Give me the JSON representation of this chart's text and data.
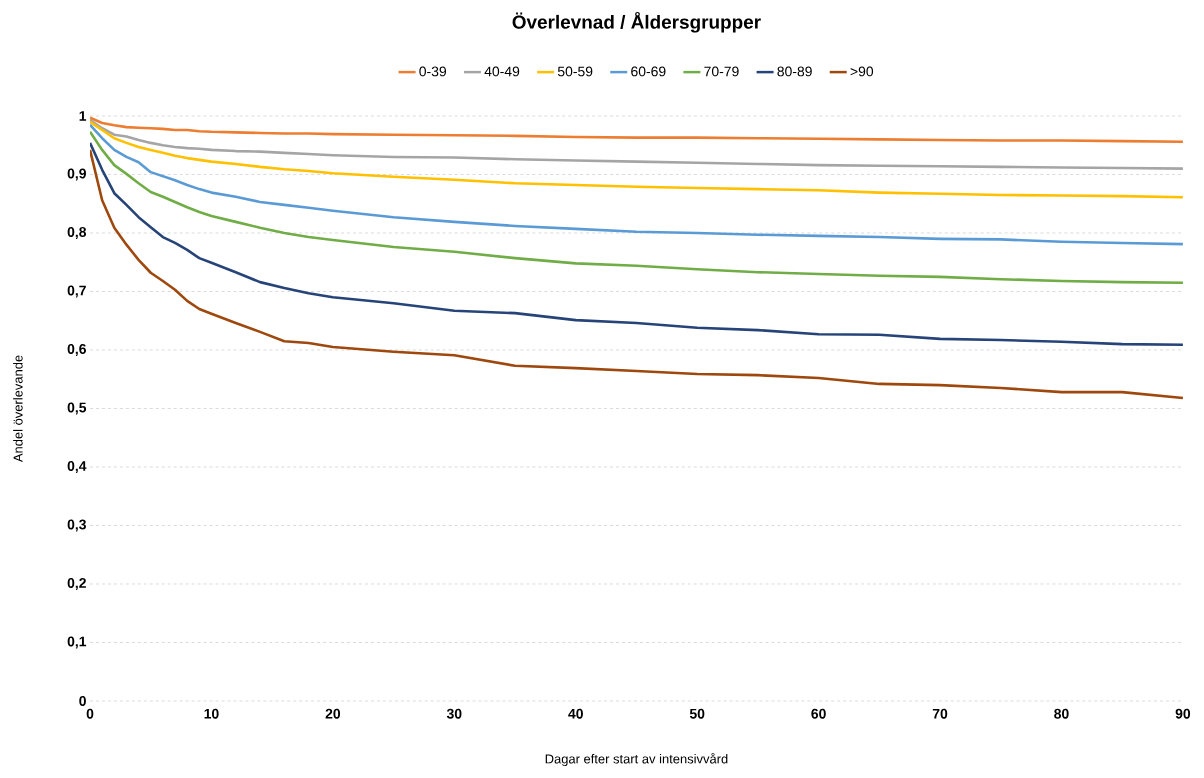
{
  "chart_data": {
    "type": "line",
    "title": "Överlevnad / Åldersgrupper",
    "xlabel": "Dagar efter start av intensivvård",
    "ylabel": "Andel överlevande",
    "x": [
      0,
      1,
      2,
      3,
      4,
      5,
      6,
      7,
      8,
      9,
      10,
      12,
      14,
      16,
      18,
      20,
      25,
      30,
      35,
      40,
      45,
      50,
      55,
      60,
      65,
      70,
      75,
      80,
      85,
      90
    ],
    "series": [
      {
        "name": "0-39",
        "color": "#ed7d31",
        "values": [
          0.997,
          0.988,
          0.984,
          0.981,
          0.98,
          0.979,
          0.978,
          0.976,
          0.976,
          0.974,
          0.973,
          0.972,
          0.971,
          0.97,
          0.97,
          0.969,
          0.968,
          0.967,
          0.966,
          0.964,
          0.963,
          0.963,
          0.962,
          0.961,
          0.96,
          0.959,
          0.958,
          0.958,
          0.957,
          0.956
        ]
      },
      {
        "name": "40-49",
        "color": "#a5a5a5",
        "values": [
          0.993,
          0.979,
          0.968,
          0.965,
          0.959,
          0.954,
          0.95,
          0.947,
          0.945,
          0.944,
          0.942,
          0.94,
          0.939,
          0.937,
          0.935,
          0.933,
          0.93,
          0.929,
          0.926,
          0.924,
          0.922,
          0.92,
          0.918,
          0.916,
          0.915,
          0.914,
          0.913,
          0.912,
          0.911,
          0.91
        ]
      },
      {
        "name": "50-59",
        "color": "#ffc000",
        "values": [
          0.99,
          0.976,
          0.962,
          0.954,
          0.947,
          0.942,
          0.937,
          0.932,
          0.928,
          0.925,
          0.922,
          0.918,
          0.913,
          0.909,
          0.906,
          0.902,
          0.896,
          0.891,
          0.885,
          0.882,
          0.879,
          0.877,
          0.875,
          0.873,
          0.869,
          0.867,
          0.865,
          0.864,
          0.863,
          0.861
        ]
      },
      {
        "name": "60-69",
        "color": "#5b9bd5",
        "values": [
          0.985,
          0.962,
          0.942,
          0.93,
          0.921,
          0.904,
          0.897,
          0.89,
          0.882,
          0.875,
          0.869,
          0.862,
          0.853,
          0.848,
          0.843,
          0.838,
          0.827,
          0.819,
          0.812,
          0.807,
          0.802,
          0.8,
          0.797,
          0.795,
          0.793,
          0.79,
          0.789,
          0.785,
          0.783,
          0.781
        ]
      },
      {
        "name": "70-79",
        "color": "#70ad47",
        "values": [
          0.973,
          0.942,
          0.916,
          0.901,
          0.885,
          0.87,
          0.862,
          0.853,
          0.844,
          0.836,
          0.829,
          0.819,
          0.809,
          0.8,
          0.793,
          0.788,
          0.776,
          0.768,
          0.757,
          0.748,
          0.744,
          0.738,
          0.733,
          0.73,
          0.727,
          0.725,
          0.721,
          0.718,
          0.716,
          0.715
        ]
      },
      {
        "name": "80-89",
        "color": "#264478",
        "values": [
          0.954,
          0.908,
          0.868,
          0.848,
          0.827,
          0.81,
          0.793,
          0.783,
          0.771,
          0.757,
          0.749,
          0.733,
          0.716,
          0.706,
          0.697,
          0.69,
          0.68,
          0.667,
          0.663,
          0.651,
          0.646,
          0.638,
          0.634,
          0.627,
          0.626,
          0.619,
          0.617,
          0.614,
          0.61,
          0.609
        ]
      },
      {
        "name": ">90",
        "color": "#9e480e",
        "values": [
          0.942,
          0.856,
          0.809,
          0.78,
          0.754,
          0.732,
          0.718,
          0.703,
          0.684,
          0.67,
          0.662,
          0.646,
          0.631,
          0.615,
          0.612,
          0.605,
          0.597,
          0.591,
          0.573,
          0.569,
          0.564,
          0.559,
          0.557,
          0.552,
          0.542,
          0.54,
          0.535,
          0.528,
          0.528,
          0.518
        ]
      }
    ],
    "xlim": [
      0,
      90
    ],
    "xticks": [
      0,
      10,
      20,
      30,
      40,
      50,
      60,
      70,
      80,
      90
    ],
    "ylim": [
      0,
      1
    ],
    "yticks": [
      0,
      {
        "value": 0.1,
        "label": "0,1"
      },
      {
        "value": 0.2,
        "label": "0,2"
      },
      {
        "value": 0.3,
        "label": "0,3"
      },
      {
        "value": 0.4,
        "label": "0,4"
      },
      {
        "value": 0.5,
        "label": "0,5"
      },
      {
        "value": 0.6,
        "label": "0,6"
      },
      {
        "value": 0.7,
        "label": "0,7"
      },
      {
        "value": 0.8,
        "label": "0,8"
      },
      {
        "value": 0.9,
        "label": "0,9"
      },
      1
    ],
    "grid": "y",
    "legend": "top",
    "marker": "none",
    "line_style": "solid"
  }
}
